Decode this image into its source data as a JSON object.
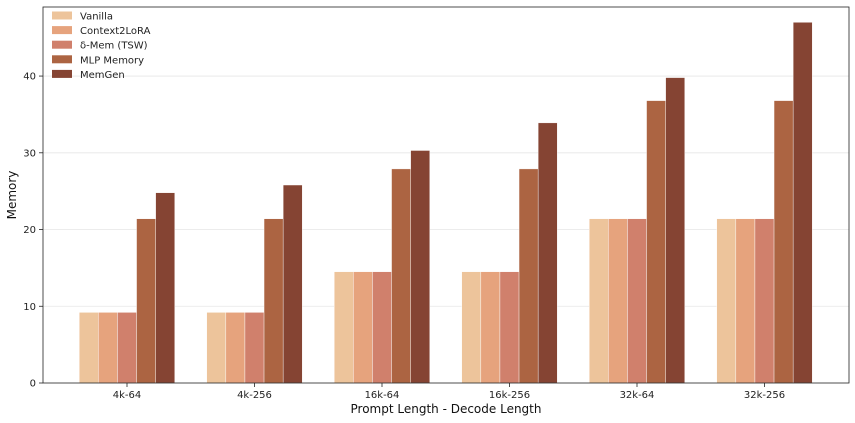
{
  "chart_data": {
    "type": "bar",
    "title": "",
    "xlabel": "Prompt Length - Decode Length",
    "ylabel": "Memory",
    "ylim": [
      0,
      49
    ],
    "yticks": [
      0,
      10,
      20,
      30,
      40
    ],
    "grid": "horizontal",
    "legend_position": "top-left",
    "categories": [
      "4k-64",
      "4k-256",
      "16k-64",
      "16k-256",
      "32k-64",
      "32k-256"
    ],
    "series": [
      {
        "name": "Vanilla",
        "color": "#edc49b",
        "values": [
          9.2,
          9.2,
          14.5,
          14.5,
          21.4,
          21.4
        ]
      },
      {
        "name": "Context2LoRA",
        "color": "#e6a37d",
        "values": [
          9.2,
          9.2,
          14.5,
          14.5,
          21.4,
          21.4
        ]
      },
      {
        "name": "δ-Mem (TSW)",
        "color": "#d0806c",
        "values": [
          9.2,
          9.2,
          14.5,
          14.5,
          21.4,
          21.4
        ]
      },
      {
        "name": "MLP Memory",
        "color": "#ac6442",
        "values": [
          21.4,
          21.4,
          27.9,
          27.9,
          36.8,
          36.8
        ]
      },
      {
        "name": "MemGen",
        "color": "#854433",
        "values": [
          24.8,
          25.8,
          30.3,
          33.9,
          39.8,
          47.0
        ]
      }
    ]
  }
}
